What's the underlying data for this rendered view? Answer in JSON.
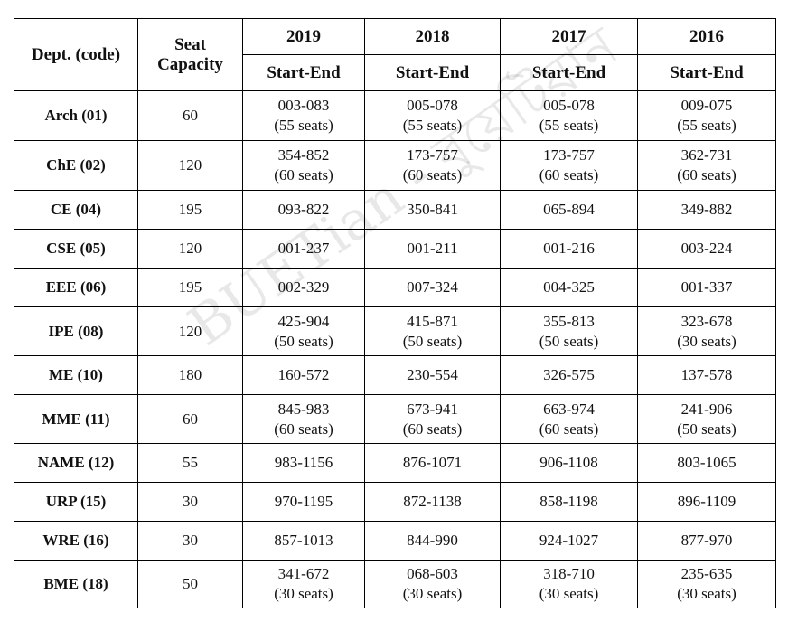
{
  "table": {
    "header": {
      "dept": "Dept. (code)",
      "capacity": "Seat Capacity",
      "years": [
        "2019",
        "2018",
        "2017",
        "2016"
      ],
      "sub": "Start-End"
    },
    "rows": [
      {
        "dept": "Arch (01)",
        "capacity": 60,
        "ranges": [
          [
            "003-083",
            "(55 seats)"
          ],
          [
            "005-078",
            "(55 seats)"
          ],
          [
            "005-078",
            "(55 seats)"
          ],
          [
            "009-075",
            "(55 seats)"
          ]
        ]
      },
      {
        "dept": "ChE (02)",
        "capacity": 120,
        "ranges": [
          [
            "354-852",
            "(60 seats)"
          ],
          [
            "173-757",
            "(60 seats)"
          ],
          [
            "173-757",
            "(60 seats)"
          ],
          [
            "362-731",
            "(60 seats)"
          ]
        ]
      },
      {
        "dept": "CE (04)",
        "capacity": 195,
        "ranges": [
          [
            "093-822"
          ],
          [
            "350-841"
          ],
          [
            "065-894"
          ],
          [
            "349-882"
          ]
        ]
      },
      {
        "dept": "CSE (05)",
        "capacity": 120,
        "ranges": [
          [
            "001-237"
          ],
          [
            "001-211"
          ],
          [
            "001-216"
          ],
          [
            "003-224"
          ]
        ]
      },
      {
        "dept": "EEE (06)",
        "capacity": 195,
        "ranges": [
          [
            "002-329"
          ],
          [
            "007-324"
          ],
          [
            "004-325"
          ],
          [
            "001-337"
          ]
        ]
      },
      {
        "dept": "IPE (08)",
        "capacity": 120,
        "ranges": [
          [
            "425-904",
            "(50 seats)"
          ],
          [
            "415-871",
            "(50 seats)"
          ],
          [
            "355-813",
            "(50 seats)"
          ],
          [
            "323-678",
            "(30 seats)"
          ]
        ]
      },
      {
        "dept": "ME (10)",
        "capacity": 180,
        "ranges": [
          [
            "160-572"
          ],
          [
            "230-554"
          ],
          [
            "326-575"
          ],
          [
            "137-578"
          ]
        ]
      },
      {
        "dept": "MME (11)",
        "capacity": 60,
        "ranges": [
          [
            "845-983",
            "(60 seats)"
          ],
          [
            "673-941",
            "(60 seats)"
          ],
          [
            "663-974",
            "(60 seats)"
          ],
          [
            "241-906",
            "(50 seats)"
          ]
        ]
      },
      {
        "dept": "NAME (12)",
        "capacity": 55,
        "ranges": [
          [
            "983-1156"
          ],
          [
            "876-1071"
          ],
          [
            "906-1108"
          ],
          [
            "803-1065"
          ]
        ]
      },
      {
        "dept": "URP (15)",
        "capacity": 30,
        "ranges": [
          [
            "970-1195"
          ],
          [
            "872-1138"
          ],
          [
            "858-1198"
          ],
          [
            "896-1109"
          ]
        ]
      },
      {
        "dept": "WRE (16)",
        "capacity": 30,
        "ranges": [
          [
            "857-1013"
          ],
          [
            "844-990"
          ],
          [
            "924-1027"
          ],
          [
            "877-970"
          ]
        ]
      },
      {
        "dept": "BME (18)",
        "capacity": 50,
        "ranges": [
          [
            "341-672",
            "(30 seats)"
          ],
          [
            "068-603",
            "(30 seats)"
          ],
          [
            "318-710",
            "(30 seats)"
          ],
          [
            "235-635",
            "(30 seats)"
          ]
        ]
      }
    ]
  },
  "watermark": "BUETian - বুয়েটিয়ান"
}
